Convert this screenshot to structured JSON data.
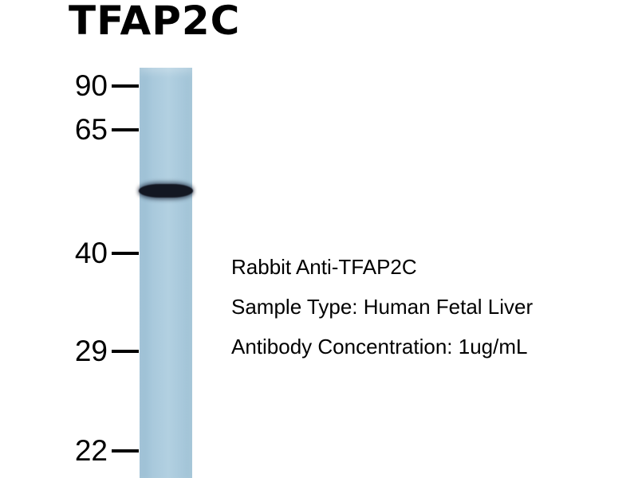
{
  "figure": {
    "title": "TFAP2C",
    "markers": [
      {
        "label": "90"
      },
      {
        "label": "65"
      },
      {
        "label": "40"
      },
      {
        "label": "29"
      },
      {
        "label": "22"
      }
    ],
    "annotations": {
      "antibody": "Rabbit Anti-TFAP2C",
      "sample_type": "Sample Type: Human Fetal Liver",
      "concentration": "Antibody Concentration: 1ug/mL"
    },
    "colors": {
      "background": "#ffffff",
      "lane": "#a9c9dc",
      "band": "#131722",
      "text": "#000000"
    }
  }
}
